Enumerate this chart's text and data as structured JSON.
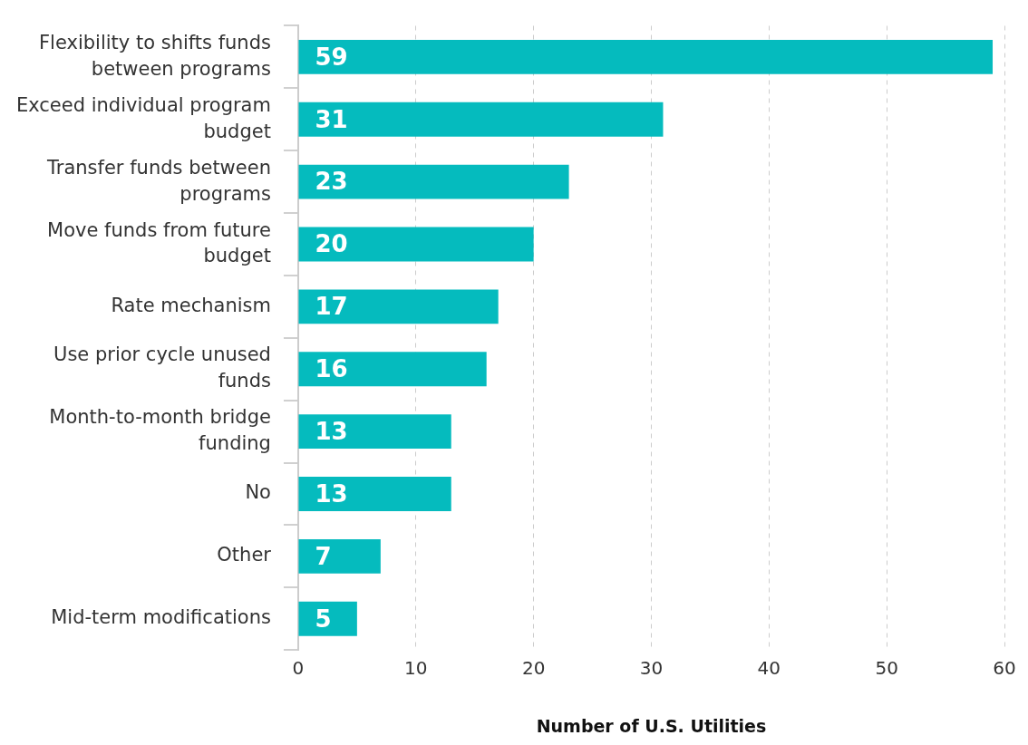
{
  "chart_data": {
    "type": "bar",
    "orientation": "horizontal",
    "xlabel": "Number of U.S. Utilities",
    "categories": [
      "Flexibility to shifts funds between programs",
      "Exceed individual program budget",
      "Transfer funds between programs",
      "Move funds from future budget",
      "Rate mechanism",
      "Use prior cycle unused funds",
      "Month-to-month bridge funding",
      "No",
      "Other",
      "Mid-term modifications"
    ],
    "values": [
      59,
      31,
      23,
      20,
      17,
      16,
      13,
      13,
      7,
      5
    ],
    "color": "#05bbbe",
    "xlim": [
      0,
      60
    ],
    "xticks": [
      0,
      10,
      20,
      30,
      40,
      50,
      60
    ],
    "grid": "x",
    "data_labels": true,
    "legend": false
  }
}
